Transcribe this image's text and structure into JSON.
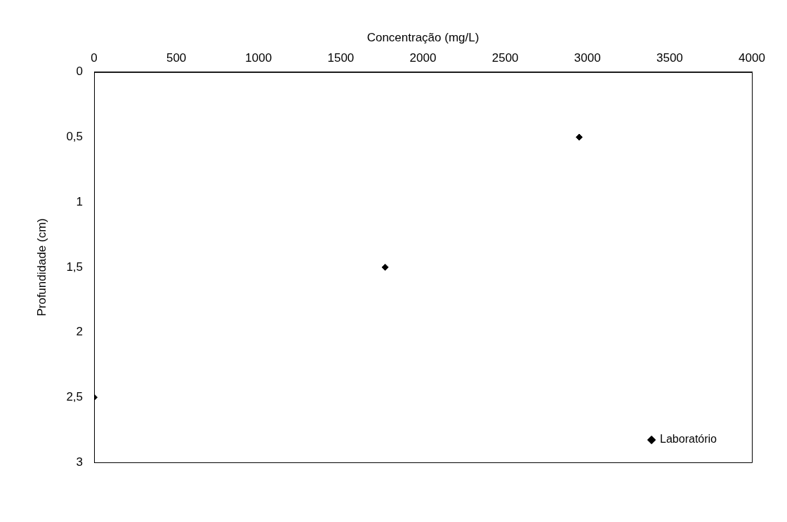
{
  "chart_data": {
    "type": "scatter",
    "xlabel": "Concentração (mg/L)",
    "ylabel": "Profundidade (cm)",
    "series": [
      {
        "name": "Laboratório",
        "color": "#000000",
        "x": [
          2950,
          1770,
          0
        ],
        "values": [
          0.5,
          1.5,
          2.5
        ]
      }
    ],
    "xlim": [
      0,
      4000
    ],
    "xticks": [
      0,
      500,
      1000,
      1500,
      2000,
      2500,
      3000,
      3500,
      4000
    ],
    "ylim": [
      3,
      0
    ],
    "yticks": [
      0,
      {
        "value": 0.5,
        "label": "0,5"
      },
      1,
      {
        "value": 1.5,
        "label": "1,5"
      },
      2,
      {
        "value": 2.5,
        "label": "2,5"
      },
      3
    ],
    "grid": false,
    "legend": "bottom right",
    "marker": "diamond"
  }
}
